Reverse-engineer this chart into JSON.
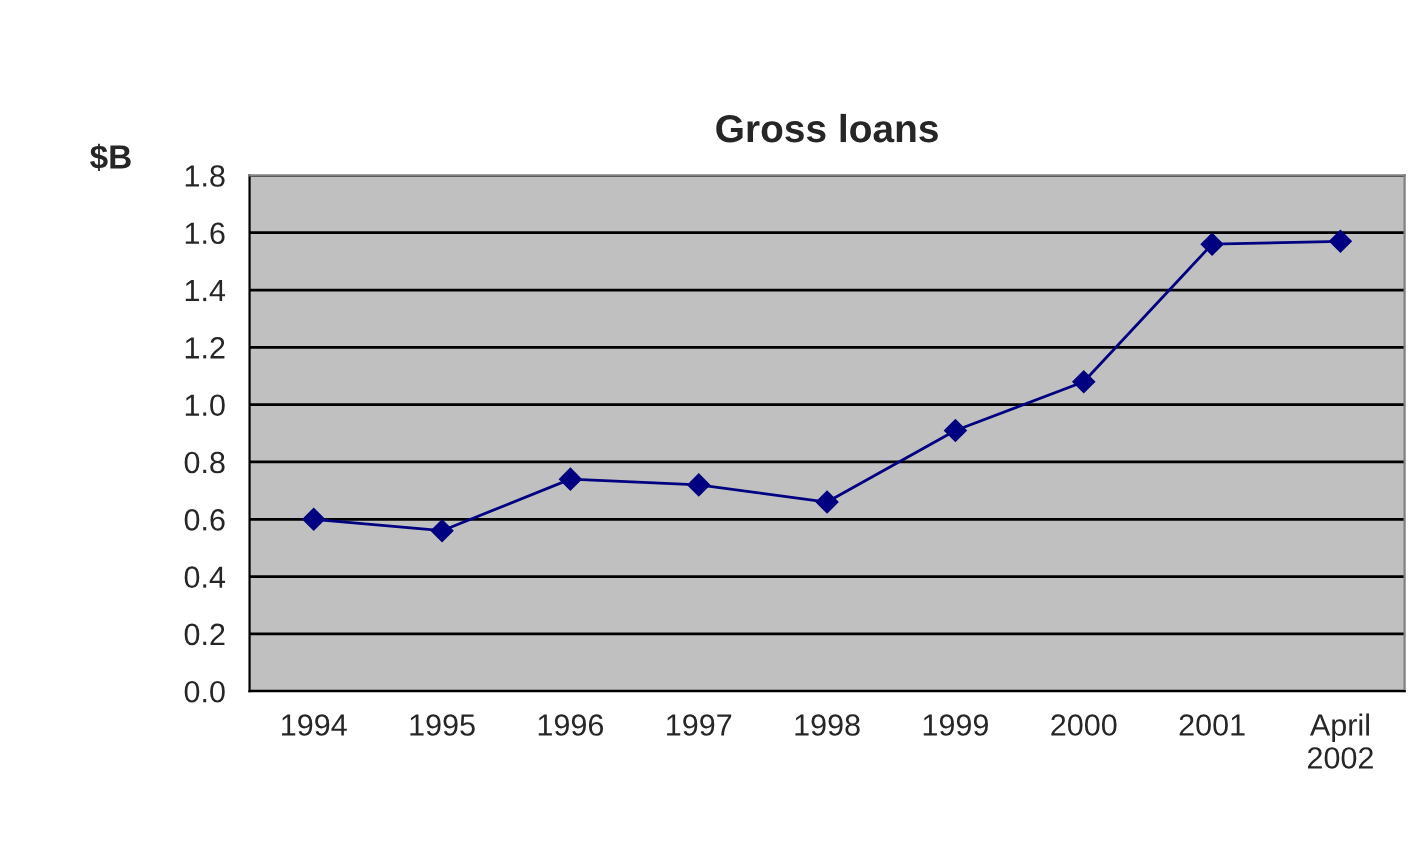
{
  "chart_data": {
    "type": "line",
    "title": "Gross loans",
    "ylabel": "$B",
    "categories": [
      "1994",
      "1995",
      "1996",
      "1997",
      "1998",
      "1999",
      "2000",
      "2001",
      "April\n2002"
    ],
    "series": [
      {
        "color": "#000080",
        "values": [
          0.6,
          0.56,
          0.74,
          0.72,
          0.66,
          0.91,
          1.08,
          1.56,
          1.57
        ]
      }
    ],
    "ylim": [
      0,
      1.8
    ],
    "yticks": [
      {
        "value": 0,
        "label": "0.0"
      },
      0.2,
      0.4,
      0.6,
      0.8,
      {
        "value": 1,
        "label": "1.0"
      },
      1.2,
      1.4,
      1.6,
      1.8
    ],
    "grid": "y",
    "legend": false,
    "marker": "diamond",
    "line_style": "solid"
  }
}
